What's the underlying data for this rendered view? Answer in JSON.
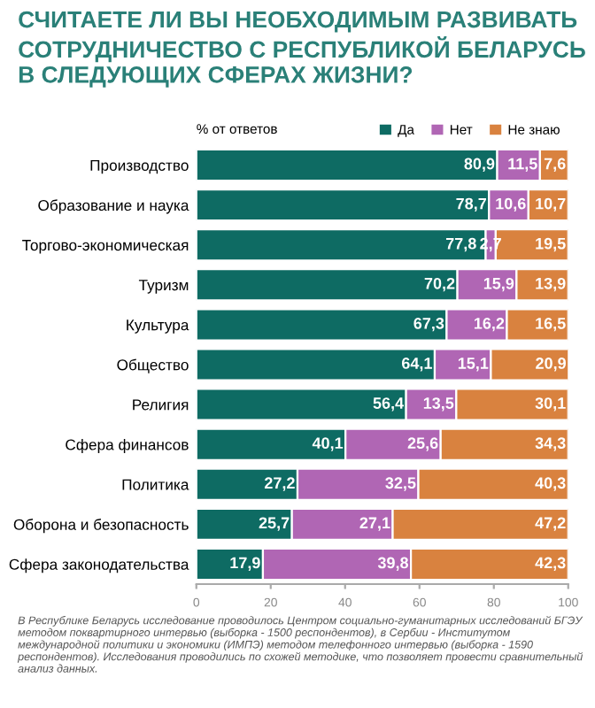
{
  "chart_data": {
    "type": "bar",
    "orientation": "horizontal",
    "stacked": true,
    "title": "СЧИТАЕТЕ ЛИ ВЫ НЕОБХОДИМЫМ РАЗВИВАТЬ СОТРУДНИЧЕСТВО С РЕСПУБЛИКОЙ БЕЛАРУСЬ В СЛЕДУЮЩИХ СФЕРАХ ЖИЗНИ?",
    "legend_title": "% от ответов",
    "categories": [
      "Производство",
      "Образование и наука",
      "Торгово-экономическая",
      "Туризм",
      "Культура",
      "Общество",
      "Религия",
      "Сфера финансов",
      "Политика",
      "Оборона и безопасность",
      "Сфера законодательства"
    ],
    "series": [
      {
        "name": "Да",
        "color": "#0e6b63",
        "values": [
          80.9,
          78.7,
          77.8,
          70.2,
          67.3,
          64.1,
          56.4,
          40.1,
          27.2,
          25.7,
          17.9
        ],
        "value_labels": [
          "80,9",
          "78,7",
          "77,8",
          "70,2",
          "67,3",
          "64,1",
          "56,4",
          "40,1",
          "27,2",
          "25,7",
          "17,9"
        ]
      },
      {
        "name": "Нет",
        "color": "#b066b4",
        "values": [
          11.5,
          10.6,
          2.7,
          15.9,
          16.2,
          15.1,
          13.5,
          25.6,
          32.5,
          27.1,
          39.8
        ],
        "value_labels": [
          "11,5",
          "10,6",
          "2,7",
          "15,9",
          "16,2",
          "15,1",
          "13,5",
          "25,6",
          "32,5",
          "27,1",
          "39,8"
        ]
      },
      {
        "name": "Не знаю",
        "color": "#d9823f",
        "values": [
          7.6,
          10.7,
          19.5,
          13.9,
          16.5,
          20.9,
          30.1,
          34.3,
          40.3,
          47.2,
          42.3
        ],
        "value_labels": [
          "7,6",
          "10,7",
          "19,5",
          "13,9",
          "16,5",
          "20,9",
          "30,1",
          "34,3",
          "40,3",
          "47,2",
          "42,3"
        ]
      }
    ],
    "xlim": [
      0,
      100
    ],
    "xticks": [
      0,
      20,
      40,
      60,
      80,
      100
    ],
    "grid": false,
    "legend": "top right",
    "annotations": [
      "В Республике Беларусь исследование проводилось Центром социально-гуманитарных исследований БГЭУ методом поквартирного интервью (выборка - 1500 респондентов), в Сербии - Институтом международной политики и экономики (ИМПЭ) методом телефонного интервью (выборка - 1590 респондентов). Исследования проводились по схожей методике, что позволяет провести сравнительный анализ данных."
    ]
  }
}
